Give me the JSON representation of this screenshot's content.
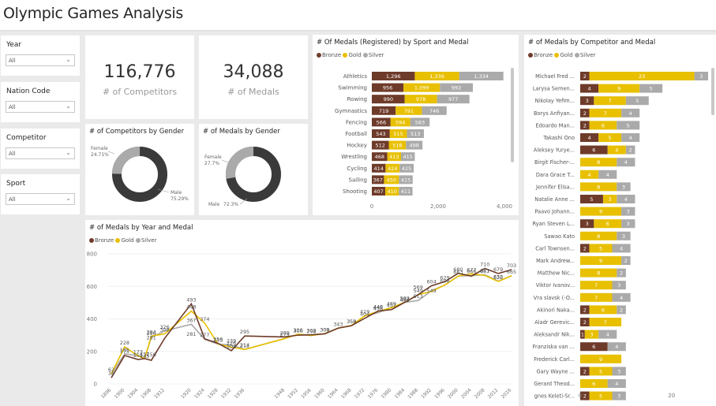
{
  "app": {
    "title": "Olympic Games Analysis"
  },
  "colors": {
    "bronze": "#6e3b2a",
    "gold": "#e8c000",
    "silver": "#aaaaaa",
    "male": "#3a3a3a",
    "female": "#aaaaaa"
  },
  "slicers": [
    {
      "title": "Year",
      "value": "All"
    },
    {
      "title": "Nation Code",
      "value": "All"
    },
    {
      "title": "Competitor",
      "value": "All"
    },
    {
      "title": "Sport",
      "value": "All"
    }
  ],
  "kpis": {
    "competitors": {
      "value": "116,776",
      "label": "# of Competitors"
    },
    "medals": {
      "value": "34,088",
      "label": "# of Medals"
    }
  },
  "legend": {
    "bronze": "Bronze",
    "gold": "Gold",
    "silver": "Silver"
  },
  "chart_data": [
    {
      "id": "sport_medal",
      "type": "bar",
      "orientation": "horizontal-stacked",
      "title": "# Of Medals (Registered) by Sport and Medal",
      "categories": [
        "Athletics",
        "Swimming",
        "Rowing",
        "Gymnastics",
        "Fencing",
        "Football",
        "Hockey",
        "Wrestling",
        "Cycling",
        "Sailing",
        "Shooting"
      ],
      "series": [
        {
          "name": "Bronze",
          "values": [
            1296,
            956,
            990,
            719,
            566,
            543,
            512,
            468,
            414,
            367,
            407
          ]
        },
        {
          "name": "Gold",
          "values": [
            1339,
            1099,
            978,
            791,
            594,
            515,
            518,
            413,
            424,
            450,
            410
          ]
        },
        {
          "name": "Silver",
          "values": [
            1334,
            992,
            977,
            746,
            583,
            513,
            498,
            415,
            425,
            415,
            411
          ]
        }
      ],
      "labels": {
        "Bronze": [
          "1,296",
          "956",
          "990",
          "719",
          "566",
          "543",
          "512",
          "468",
          "414",
          "367",
          "407"
        ],
        "Gold": [
          "1,339",
          "1,099",
          "978",
          "791",
          "594",
          "515",
          "518",
          "413",
          "424",
          "450",
          "410"
        ],
        "Silver": [
          "1,334",
          "992",
          "977",
          "746",
          "583",
          "513",
          "498",
          "415",
          "425",
          "415",
          "411"
        ]
      },
      "xlim": [
        0,
        4000
      ],
      "xticks": [
        "0",
        "2,000",
        "4,000"
      ]
    },
    {
      "id": "competitor_medal",
      "type": "bar",
      "orientation": "horizontal-stacked",
      "title": "# of Medals by Competitor and Medal",
      "categories": [
        "Michael Fred ...",
        "Larysa Semen...",
        "Nikolay Yefim...",
        "Borys Anfiyan...",
        "Edoardo Man...",
        "Takashi Ono",
        "Aleksey Yurye...",
        "Birgit Fischer-...",
        "Dara Grace T...",
        "Jennifer Elisa...",
        "Natalie Anne ...",
        "Paavo Johann...",
        "Ryan Steven L...",
        "Sawao Kato",
        "Carl Townsen...",
        "Mark Andrew...",
        "Matthew Nic...",
        "Viktor Ivanov...",
        "Vra slavsk (-O...",
        "Akinori Naka...",
        "Aladr Gerevic...",
        "Aleksandr Nik...",
        "Franziska van ...",
        "Frederick Carl...",
        "Gary Wayne ...",
        "Gerard Theod...",
        "gnes Keleti-Sr..."
      ],
      "series": [
        {
          "name": "Bronze",
          "values": [
            2,
            4,
            3,
            2,
            2,
            4,
            6,
            0,
            0,
            0,
            5,
            0,
            3,
            0,
            2,
            0,
            0,
            0,
            0,
            2,
            2,
            1,
            6,
            0,
            2,
            0,
            2
          ]
        },
        {
          "name": "Gold",
          "values": [
            23,
            9,
            7,
            7,
            6,
            5,
            4,
            8,
            4,
            8,
            3,
            9,
            6,
            8,
            5,
            9,
            8,
            7,
            7,
            6,
            7,
            3,
            0,
            9,
            5,
            6,
            5
          ]
        },
        {
          "name": "Silver",
          "values": [
            3,
            5,
            5,
            4,
            5,
            4,
            2,
            4,
            4,
            3,
            4,
            3,
            3,
            3,
            4,
            2,
            2,
            3,
            4,
            2,
            0,
            4,
            4,
            0,
            3,
            4,
            3
          ]
        }
      ],
      "xlim": [
        0,
        28
      ],
      "xticks": [
        "0",
        "20"
      ]
    },
    {
      "id": "gender_competitors",
      "type": "pie",
      "variant": "donut",
      "title": "# of Competitors by Gender",
      "slices": [
        {
          "name": "Female",
          "value": 24.71,
          "label": "24.71%"
        },
        {
          "name": "Male",
          "value": 75.29,
          "label": "75.29%"
        }
      ]
    },
    {
      "id": "gender_medals",
      "type": "pie",
      "variant": "donut",
      "title": "# of Medals by Gender",
      "slices": [
        {
          "name": "Female",
          "value": 27.7,
          "label": "27.7%"
        },
        {
          "name": "Male",
          "value": 72.3,
          "label": "72.3%"
        }
      ]
    },
    {
      "id": "year_medal",
      "type": "line",
      "title": "# of Medals by Year and Medal",
      "x": [
        1896,
        1900,
        1904,
        1906,
        1908,
        1912,
        1920,
        1924,
        1928,
        1932,
        1936,
        1948,
        1952,
        1956,
        1960,
        1964,
        1968,
        1972,
        1976,
        1980,
        1984,
        1988,
        1992,
        1996,
        2000,
        2004,
        2008,
        2012,
        2016
      ],
      "xticks": [
        1896,
        1900,
        1904,
        1908,
        1912,
        1920,
        1924,
        1928,
        1932,
        1936,
        1948,
        1952,
        1956,
        1960,
        1964,
        1968,
        1972,
        1976,
        1980,
        1984,
        1988,
        1992,
        1996,
        2000,
        2004,
        2008,
        2012,
        2016
      ],
      "series": [
        {
          "name": "Bronze",
          "values": [
            38,
            175,
            150,
            156,
            145,
            281,
            493,
            277,
            250,
            204,
            295,
            289,
            300,
            302,
            308,
            343,
            358,
            404,
            448,
            457,
            502,
            549,
            604,
            629,
            680,
            663,
            710,
            679,
            703
          ]
        },
        {
          "name": "Gold",
          "values": [
            62,
            228,
            173,
            157,
            294,
            308,
            448,
            374,
            245,
            226,
            212,
            279,
            306,
            298,
            309,
            343,
            359,
            419,
            446,
            469,
            502,
            549,
            569,
            608,
            663,
            677,
            667,
            630,
            665
          ]
        },
        {
          "name": "Silver",
          "values": [
            62,
            185,
            173,
            157,
            286,
            326,
            367,
            274,
            245,
            239,
            212,
            279,
            306,
            298,
            309,
            343,
            359,
            419,
            438,
            469,
            502,
            513,
            573,
            608,
            663,
            666,
            671,
            632,
            665
          ]
        }
      ],
      "labels": [
        {
          "text": "38",
          "x": 1896,
          "y": 38
        },
        {
          "text": "62",
          "x": 1896,
          "y": 62
        },
        {
          "text": "228",
          "x": 1900,
          "y": 228
        },
        {
          "text": "185",
          "x": 1900,
          "y": 185
        },
        {
          "text": "175",
          "x": 1900,
          "y": 175
        },
        {
          "text": "150",
          "x": 1904,
          "y": 150
        },
        {
          "text": "173",
          "x": 1904,
          "y": 173
        },
        {
          "text": "157",
          "x": 1906,
          "y": 157
        },
        {
          "text": "145",
          "x": 1906,
          "y": 145
        },
        {
          "text": "156",
          "x": 1908,
          "y": 156
        },
        {
          "text": "294",
          "x": 1908,
          "y": 294
        },
        {
          "text": "286",
          "x": 1908,
          "y": 286
        },
        {
          "text": "281",
          "x": 1908,
          "y": 260
        },
        {
          "text": "308",
          "x": 1912,
          "y": 308
        },
        {
          "text": "326",
          "x": 1912,
          "y": 326
        },
        {
          "text": "493",
          "x": 1920,
          "y": 493
        },
        {
          "text": "448",
          "x": 1920,
          "y": 448
        },
        {
          "text": "367",
          "x": 1920,
          "y": 367
        },
        {
          "text": "281",
          "x": 1920,
          "y": 281
        },
        {
          "text": "374",
          "x": 1924,
          "y": 374
        },
        {
          "text": "277",
          "x": 1924,
          "y": 277
        },
        {
          "text": "250",
          "x": 1928,
          "y": 250
        },
        {
          "text": "245",
          "x": 1928,
          "y": 245
        },
        {
          "text": "226",
          "x": 1932,
          "y": 226
        },
        {
          "text": "239",
          "x": 1932,
          "y": 239
        },
        {
          "text": "204",
          "x": 1932,
          "y": 204
        },
        {
          "text": "295",
          "x": 1936,
          "y": 295
        },
        {
          "text": "212",
          "x": 1936,
          "y": 212
        },
        {
          "text": "214",
          "x": 1936,
          "y": 214
        },
        {
          "text": "289",
          "x": 1948,
          "y": 289
        },
        {
          "text": "279",
          "x": 1948,
          "y": 279
        },
        {
          "text": "300",
          "x": 1952,
          "y": 300
        },
        {
          "text": "306",
          "x": 1952,
          "y": 306
        },
        {
          "text": "302",
          "x": 1956,
          "y": 302
        },
        {
          "text": "298",
          "x": 1956,
          "y": 298
        },
        {
          "text": "308",
          "x": 1960,
          "y": 308
        },
        {
          "text": "309",
          "x": 1960,
          "y": 309
        },
        {
          "text": "343",
          "x": 1964,
          "y": 343
        },
        {
          "text": "358",
          "x": 1968,
          "y": 358
        },
        {
          "text": "359",
          "x": 1968,
          "y": 359
        },
        {
          "text": "404",
          "x": 1972,
          "y": 404
        },
        {
          "text": "419",
          "x": 1972,
          "y": 419
        },
        {
          "text": "448",
          "x": 1976,
          "y": 448
        },
        {
          "text": "446",
          "x": 1976,
          "y": 446
        },
        {
          "text": "438",
          "x": 1976,
          "y": 438
        },
        {
          "text": "469",
          "x": 1980,
          "y": 469
        },
        {
          "text": "457",
          "x": 1980,
          "y": 457
        },
        {
          "text": "502",
          "x": 1984,
          "y": 502
        },
        {
          "text": "497",
          "x": 1984,
          "y": 497
        },
        {
          "text": "489",
          "x": 1984,
          "y": 489
        },
        {
          "text": "549",
          "x": 1988,
          "y": 549
        },
        {
          "text": "513",
          "x": 1988,
          "y": 513
        },
        {
          "text": "569",
          "x": 1988,
          "y": 569
        },
        {
          "text": "549",
          "x": 1992,
          "y": 549
        },
        {
          "text": "604",
          "x": 1992,
          "y": 604
        },
        {
          "text": "629",
          "x": 1996,
          "y": 629
        },
        {
          "text": "608",
          "x": 1996,
          "y": 608
        },
        {
          "text": "680",
          "x": 2000,
          "y": 680
        },
        {
          "text": "663",
          "x": 2000,
          "y": 663
        },
        {
          "text": "666",
          "x": 2004,
          "y": 666
        },
        {
          "text": "677",
          "x": 2004,
          "y": 677
        },
        {
          "text": "671",
          "x": 2008,
          "y": 671
        },
        {
          "text": "667",
          "x": 2008,
          "y": 667
        },
        {
          "text": "710",
          "x": 2008,
          "y": 710
        },
        {
          "text": "630",
          "x": 2012,
          "y": 630
        },
        {
          "text": "679",
          "x": 2012,
          "y": 679
        },
        {
          "text": "632",
          "x": 2012,
          "y": 632
        },
        {
          "text": "703",
          "x": 2016,
          "y": 703
        },
        {
          "text": "665",
          "x": 2016,
          "y": 665
        }
      ],
      "ylim": [
        0,
        800
      ],
      "yticks": [
        0,
        200,
        400,
        600,
        800
      ]
    }
  ]
}
